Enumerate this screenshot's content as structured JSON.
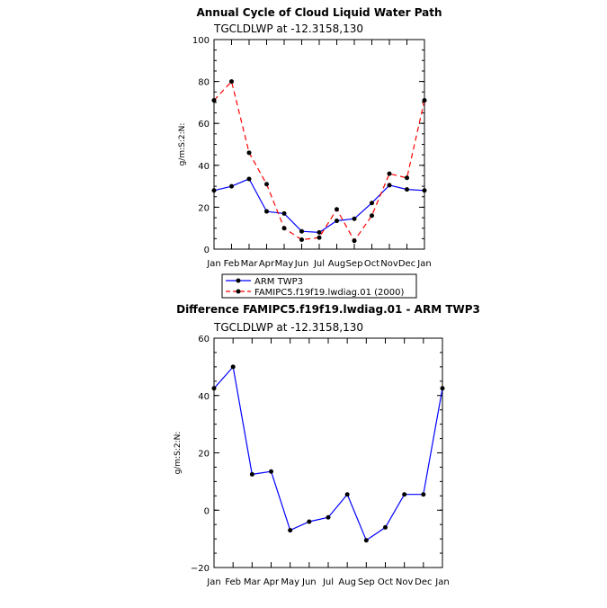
{
  "chart_data": [
    {
      "type": "line",
      "title": "Annual Cycle of Cloud Liquid Water Path",
      "subtitle": "TGCLDLWP  at  -12.3158,130",
      "ylabel": "g/m:S:2:N:",
      "categories": [
        "Jan",
        "Feb",
        "Mar",
        "Apr",
        "May",
        "Jun",
        "Jul",
        "Aug",
        "Sep",
        "Oct",
        "Nov",
        "Dec",
        "Jan"
      ],
      "ylim": [
        0,
        100
      ],
      "yticks": [
        0,
        20,
        40,
        60,
        80,
        100
      ],
      "series": [
        {
          "name": "ARM TWP3",
          "color": "#0000ff",
          "dash": "solid",
          "values": [
            28,
            30,
            33.5,
            18,
            17,
            8.5,
            8,
            13.5,
            14.5,
            22,
            30.5,
            28.5,
            28
          ]
        },
        {
          "name": "FAMIPC5.f19f19.lwdiag.01 (2000)",
          "color": "#ff0000",
          "dash": "dashed",
          "values": [
            71,
            80,
            46,
            31,
            10,
            4.5,
            5.5,
            19,
            4,
            16,
            36,
            34,
            71
          ]
        }
      ],
      "legend_position": "bottom"
    },
    {
      "type": "line",
      "title": "Difference FAMIPC5.f19f19.lwdiag.01 - ARM TWP3",
      "subtitle": "TGCLDLWP  at  -12.3158,130",
      "ylabel": "g/m:S:2:N:",
      "categories": [
        "Jan",
        "Feb",
        "Mar",
        "Apr",
        "May",
        "Jun",
        "Jul",
        "Aug",
        "Sep",
        "Oct",
        "Nov",
        "Dec",
        "Jan"
      ],
      "ylim": [
        -20,
        60
      ],
      "yticks": [
        -20,
        0,
        20,
        40,
        60
      ],
      "series": [
        {
          "name": "Difference",
          "color": "#0000ff",
          "dash": "solid",
          "values": [
            42.5,
            50,
            12.5,
            13.5,
            -7,
            -4,
            -2.5,
            5.5,
            -10.5,
            -6,
            5.5,
            5.5,
            42.5
          ]
        }
      ]
    }
  ]
}
